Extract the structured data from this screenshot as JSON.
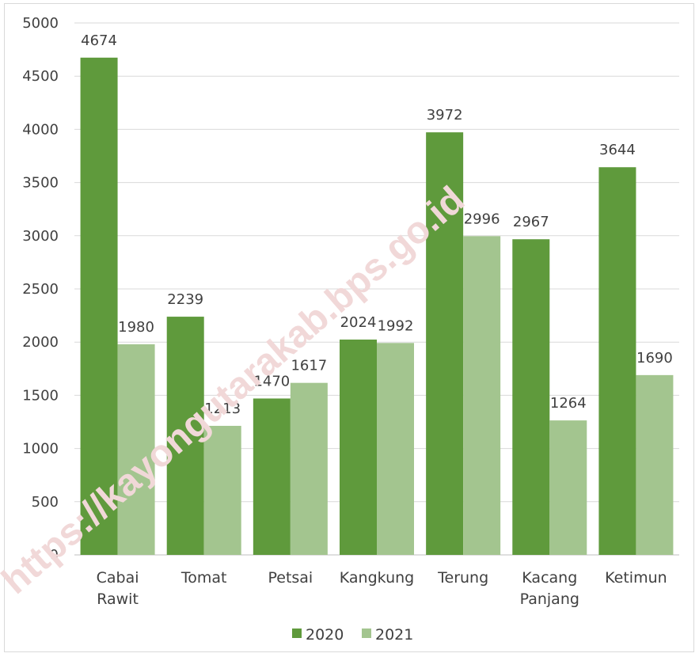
{
  "chart_data": {
    "type": "bar",
    "categories": [
      [
        "Cabai",
        "Rawit"
      ],
      [
        "Tomat"
      ],
      [
        "Petsai"
      ],
      [
        "Kangkung"
      ],
      [
        "Terung"
      ],
      [
        "Kacang",
        "Panjang"
      ],
      [
        "Ketimun"
      ]
    ],
    "series": [
      {
        "name": "2020",
        "values": [
          4674,
          2239,
          1470,
          2024,
          3972,
          2967,
          3644
        ],
        "color": "#5f9a3c"
      },
      {
        "name": "2021",
        "values": [
          1980,
          1213,
          1617,
          1992,
          2996,
          1264,
          1690
        ],
        "color": "#a3c58f"
      }
    ],
    "ylim": [
      0,
      5000
    ],
    "yticks": [
      0,
      500,
      1000,
      1500,
      2000,
      2500,
      3000,
      3500,
      4000,
      4500,
      5000
    ],
    "grid": true,
    "legend_position": "bottom"
  },
  "watermark": "https://kayongutarakab.bps.go.id",
  "colors": {
    "gridline": "#d9d9d9",
    "axis": "#bfbfbf",
    "text": "#404040"
  }
}
